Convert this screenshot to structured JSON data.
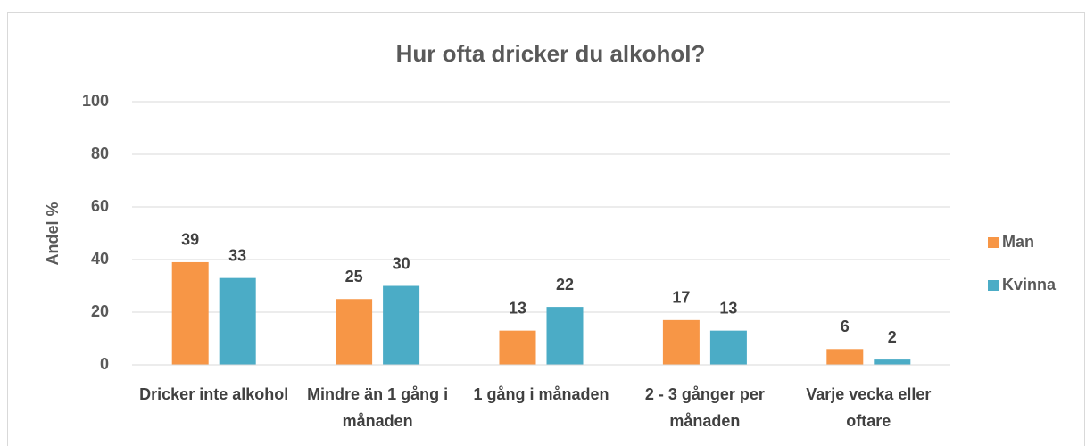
{
  "chart_data": {
    "type": "bar",
    "title": "Hur ofta dricker du alkohol?",
    "y_label": "Andel %",
    "categories": [
      "Dricker inte alkohol",
      "Mindre än 1 gång i månaden",
      "1 gång i månaden",
      "2 - 3 gånger per månaden",
      "Varje vecka eller oftare"
    ],
    "series": [
      {
        "name": "Man",
        "color": "#f79646",
        "values": [
          39,
          25,
          13,
          17,
          6
        ]
      },
      {
        "name": "Kvinna",
        "color": "#4bacc6",
        "values": [
          33,
          30,
          22,
          13,
          2
        ]
      }
    ],
    "ylim": [
      0,
      100
    ],
    "yticks": [
      0,
      20,
      40,
      60,
      80,
      100
    ],
    "grid": true,
    "legend": "right"
  }
}
